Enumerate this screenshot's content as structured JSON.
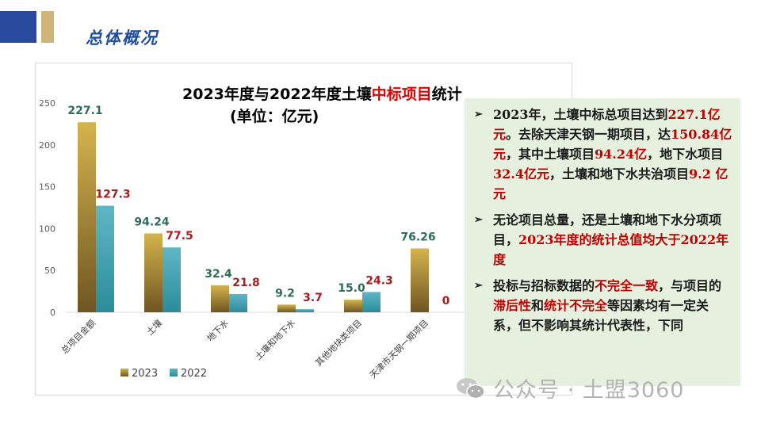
{
  "header": {
    "title": "总体概况",
    "accent_colors": [
      "#2a4aa0",
      "#cfb57a"
    ]
  },
  "chart_data": {
    "type": "bar",
    "title": {
      "line1_before": "2023年度与2022年度土壤",
      "line1_highlight": "中标项目",
      "line1_after": "统计",
      "line2": "(单位：亿元)"
    },
    "categories": [
      "总项目金额",
      "土壤",
      "地下水",
      "土壤和地下水",
      "其他地块类项目",
      "天津市天钢一期项目"
    ],
    "series": [
      {
        "name": "2023",
        "values": [
          227.1,
          94.24,
          32.4,
          9.2,
          15.0,
          76.26
        ],
        "labels": [
          "227.1",
          "94.24",
          "32.4",
          "9.2",
          "15.0",
          "76.26"
        ]
      },
      {
        "name": "2022",
        "values": [
          127.3,
          77.5,
          21.8,
          3.7,
          24.3,
          0
        ],
        "labels": [
          "127.3",
          "77.5",
          "21.8",
          "3.7",
          "24.3",
          "0"
        ]
      }
    ],
    "yticks": [
      "0",
      "50",
      "100",
      "150",
      "200",
      "250"
    ],
    "ylim": [
      0,
      250
    ],
    "grid": false,
    "legend_position": "bottom-left",
    "colors": {
      "series_2023_top": "#d4b44e",
      "series_2023_bottom": "#6e5522",
      "series_2022_top": "#5fb6c6",
      "series_2022_bottom": "#2c8c9a",
      "label_2023": "#2e6b5a",
      "label_2022": "#a11f1f"
    }
  },
  "notes": [
    {
      "parts": [
        {
          "text": "2023年，土壤中标总项目达到",
          "red": false
        },
        {
          "text": "227.1亿元",
          "red": true
        },
        {
          "text": "。去除天津天钢一期项目，达",
          "red": false
        },
        {
          "text": "150.84亿元",
          "red": true
        },
        {
          "text": "，其中土壤项目",
          "red": false
        },
        {
          "text": "94.24亿",
          "red": true
        },
        {
          "text": "，地下水项目",
          "red": false
        },
        {
          "text": "32.4亿元",
          "red": true
        },
        {
          "text": "，土壤和地下水共治项目",
          "red": false
        },
        {
          "text": "9.2 亿元",
          "red": true
        }
      ]
    },
    {
      "parts": [
        {
          "text": "无论项目总量，还是土壤和地下水分项项目，",
          "red": false
        },
        {
          "text": "2023年度的统计总值均大于2022年度",
          "red": true
        }
      ]
    },
    {
      "parts": [
        {
          "text": "投标与招标数据的",
          "red": false
        },
        {
          "text": "不完全一致",
          "red": true
        },
        {
          "text": "，与项目的",
          "red": false
        },
        {
          "text": "滞后性",
          "red": true
        },
        {
          "text": "和",
          "red": false
        },
        {
          "text": "统计不完全",
          "red": true
        },
        {
          "text": "等因素均有一定关系，但不影响其统计代表性，下同",
          "red": false
        }
      ]
    }
  ],
  "watermark": {
    "text": "公众号 · 土盟3060",
    "icon": "wechat-icon"
  }
}
